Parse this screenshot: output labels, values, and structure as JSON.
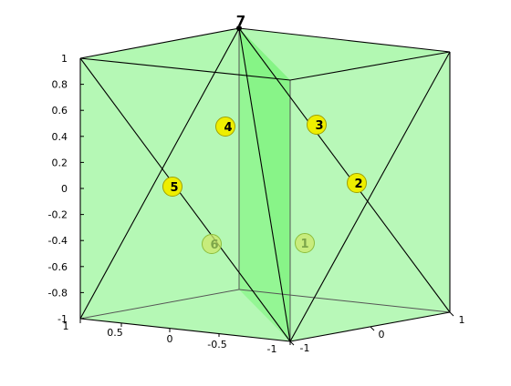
{
  "colors": {
    "face_fill": "#33ee33",
    "edge": "#000000",
    "inner_edge": "#555555",
    "marker_front": "#eeee00",
    "marker_front_edge": "#a0a000",
    "marker_back": "#cde86a",
    "marker_back_edge": "#8cbd3a",
    "label_front": "#000000",
    "label_back": "#7da64a"
  },
  "z_axis": {
    "ticks": [
      "1",
      "0.8",
      "0.6",
      "0.4",
      "0.2",
      "0",
      "-0.2",
      "-0.4",
      "-0.6",
      "-0.8",
      "-1"
    ]
  },
  "x_axis": {
    "ticks": [
      "1",
      "0.5",
      "0",
      "-0.5",
      "-1"
    ]
  },
  "y_axis": {
    "ticks": [
      "-1",
      "0",
      "1"
    ]
  },
  "apex": {
    "label": "7"
  },
  "markers": [
    {
      "label": "1",
      "layer": "back"
    },
    {
      "label": "2",
      "layer": "front"
    },
    {
      "label": "3",
      "layer": "front"
    },
    {
      "label": "4",
      "layer": "front"
    },
    {
      "label": "5",
      "layer": "front"
    },
    {
      "label": "6",
      "layer": "back"
    }
  ]
}
